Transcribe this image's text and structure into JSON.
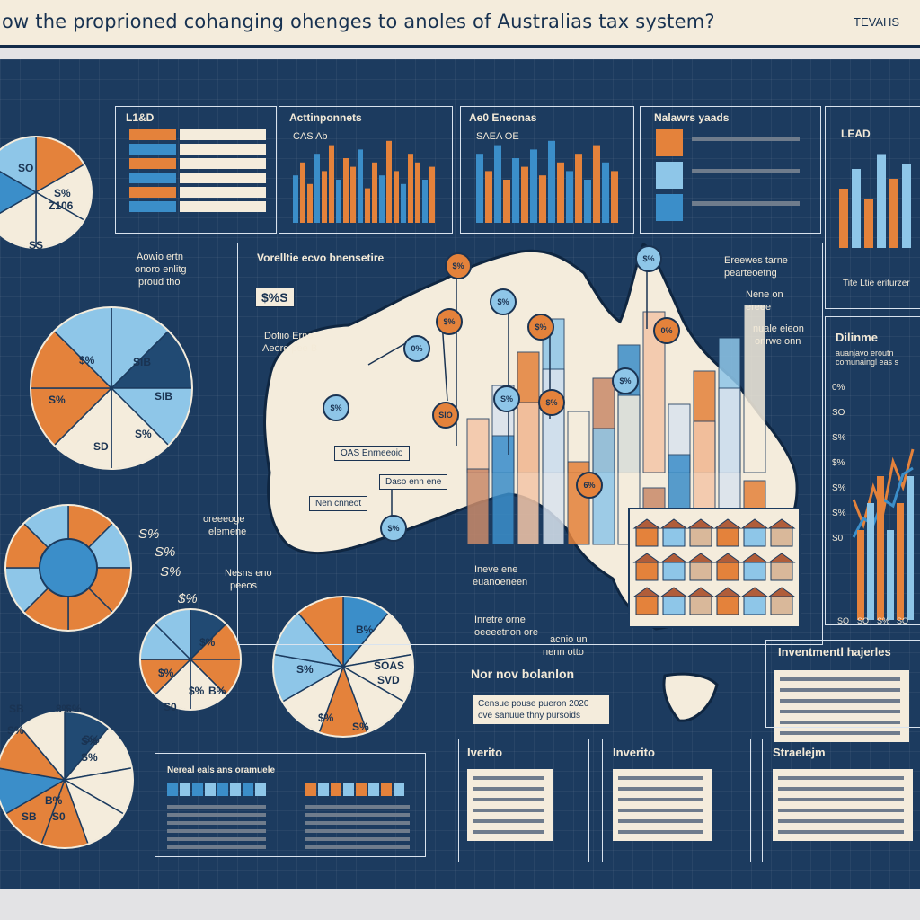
{
  "title": "ow the proprioned cohanging ohenges to anoles of Australias tax system?",
  "tag": "TEVAHS",
  "colors": {
    "navy": "#1c3b5f",
    "orange": "#e4823b",
    "light_blue": "#8ec6e8",
    "mid_blue": "#3b8ec9",
    "cream": "#f4ecdc"
  },
  "panels": {
    "table_panel": {
      "title": "L1&D"
    },
    "bars1": {
      "title": "Acttinponnets",
      "sub": "CAS Ab"
    },
    "bars2": {
      "title": "Ae0 Eneonas",
      "sub": "SAEA OE"
    },
    "legend_panel": {
      "title": "Nalawrs yaads"
    },
    "right_bars": {
      "title": "LEAD",
      "note": "Tite Ltie eriturzer"
    },
    "map": {
      "title": "Vorelltie ecvo bnensetire"
    },
    "lines": {
      "title": "Dilinme",
      "sub": "auanjavo eroutn comunaingl eas s"
    },
    "investment": {
      "title": "Inventmentl hajerles"
    },
    "new_box": {
      "title": "Nor nov bolanlon",
      "text": "Censue pouse pueron 2020 ove sanuue thny pursoids"
    },
    "inverto1": {
      "title": "Iverito"
    },
    "inverto2": {
      "title": "Inverito"
    },
    "strategy": {
      "title": "Straelejm"
    },
    "bottom_bars": {
      "title": "Nereal eals ans oramuele"
    }
  },
  "pie_labels": {
    "pie1": [
      "SO",
      "S%",
      "Z106",
      "SS"
    ],
    "pie2": [
      "$%",
      "SIB",
      "SIB",
      "S%",
      "S%",
      "SD"
    ],
    "pie4": [
      "$%",
      "$%",
      "$%",
      "B%",
      "S0"
    ],
    "pie5": [
      "8%",
      "S%",
      "S%",
      "B%"
    ],
    "pie6": [
      "SB",
      "S%",
      "S%",
      "S%",
      "SB",
      "S0"
    ],
    "pie7": [
      "S%",
      "B%",
      "SOAS",
      "SVD",
      "$%",
      "S%"
    ]
  },
  "floating_labels": [
    "S%",
    "S%",
    "S%",
    "$%"
  ],
  "map_labels": {
    "left1": "Aowio ertn",
    "left2": "onoro enlitg",
    "left3": "proud tho",
    "callout1": "$%S",
    "callout2": "Dofiio Erno",
    "callout3": "Aeore pee B",
    "tag1": "OAS Enrneeoio",
    "tag2": "Daso enn ene",
    "tag3": "Nen cnneot",
    "left4": "oreeeoge",
    "left5": "elemene",
    "left6": "Nesns eno",
    "left7": "peeos",
    "right1": "Ereewes tarne",
    "right2": "pearteoetng",
    "right3": "Nene on",
    "right4": "ereee",
    "right5": "nuale eieon",
    "right6": "onrwe onn",
    "bottom1": "Ineve ene",
    "bottom2": "euanoeneen",
    "bottom3": "Inretre orne",
    "bottom4": "oeeeetnon ore",
    "bottom5": "acnio un",
    "bottom6": "nenn otto"
  },
  "badges": [
    "$%",
    "0%",
    "$%",
    "$%",
    "$%",
    "$%",
    "SIO",
    "S%",
    "$%",
    "$%",
    "6%",
    "$%",
    "0%",
    "$%"
  ],
  "bars1_values": [
    0.55,
    0.7,
    0.45,
    0.8,
    0.6,
    0.9,
    0.5,
    0.75,
    0.65,
    0.85,
    0.4,
    0.7,
    0.55,
    0.95,
    0.6,
    0.45,
    0.8,
    0.7,
    0.5,
    0.65
  ],
  "bars2_values": [
    0.8,
    0.6,
    0.9,
    0.5,
    0.75,
    0.65,
    0.85,
    0.55,
    0.95,
    0.7,
    0.6,
    0.8,
    0.5,
    0.9,
    0.7,
    0.6
  ],
  "right_bars_values": [
    0.6,
    0.8,
    0.5,
    0.95,
    0.7,
    0.85
  ],
  "line_series": [
    {
      "name": "",
      "values": [
        0.5,
        0.3,
        0.6,
        0.4,
        0.8,
        0.6,
        0.9
      ]
    },
    {
      "name": "",
      "values": [
        0.2,
        0.35,
        0.3,
        0.5,
        0.45,
        0.7,
        0.75
      ]
    }
  ],
  "y_ticks": [
    "0%",
    "SO",
    "S%",
    "$%",
    "S%",
    "S%",
    "S0"
  ],
  "x_ticks": [
    "SO",
    "SO",
    "S%",
    "SO"
  ]
}
